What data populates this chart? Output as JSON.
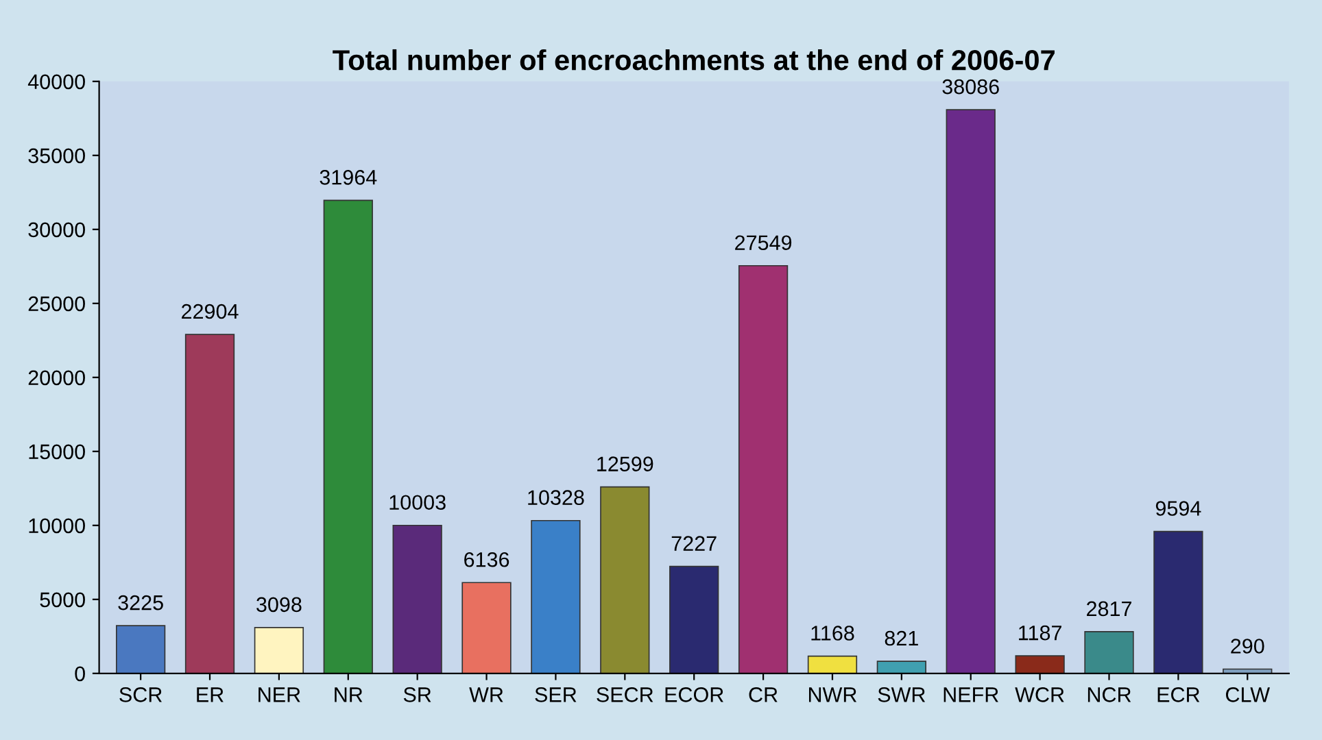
{
  "chart_data": {
    "type": "bar",
    "title": "Total number of encroachments at the end of 2006-07",
    "categories": [
      "SCR",
      "ER",
      "NER",
      "NR",
      "SR",
      "WR",
      "SER",
      "SECR",
      "ECOR",
      "CR",
      "NWR",
      "SWR",
      "NEFR",
      "WCR",
      "NCR",
      "ECR",
      "CLW"
    ],
    "values": [
      3225,
      22904,
      3098,
      31964,
      10003,
      6136,
      10328,
      12599,
      7227,
      27549,
      1168,
      821,
      38086,
      1187,
      2817,
      9594,
      290
    ],
    "colors": [
      "#4a78c0",
      "#9e3a5a",
      "#fff4c0",
      "#2e8b3a",
      "#5a2a7a",
      "#e87060",
      "#3a80c8",
      "#8a8a30",
      "#2a2a70",
      "#a03070",
      "#f0e040",
      "#40a0b0",
      "#6a2a8a",
      "#8a2a1a",
      "#3a8a8a",
      "#2a2a70",
      "#80a0c0"
    ],
    "ylim": [
      0,
      40000
    ],
    "yticks": [
      0,
      5000,
      10000,
      15000,
      20000,
      25000,
      30000,
      35000,
      40000
    ],
    "data_labels": true,
    "grid": false,
    "legend": false
  }
}
